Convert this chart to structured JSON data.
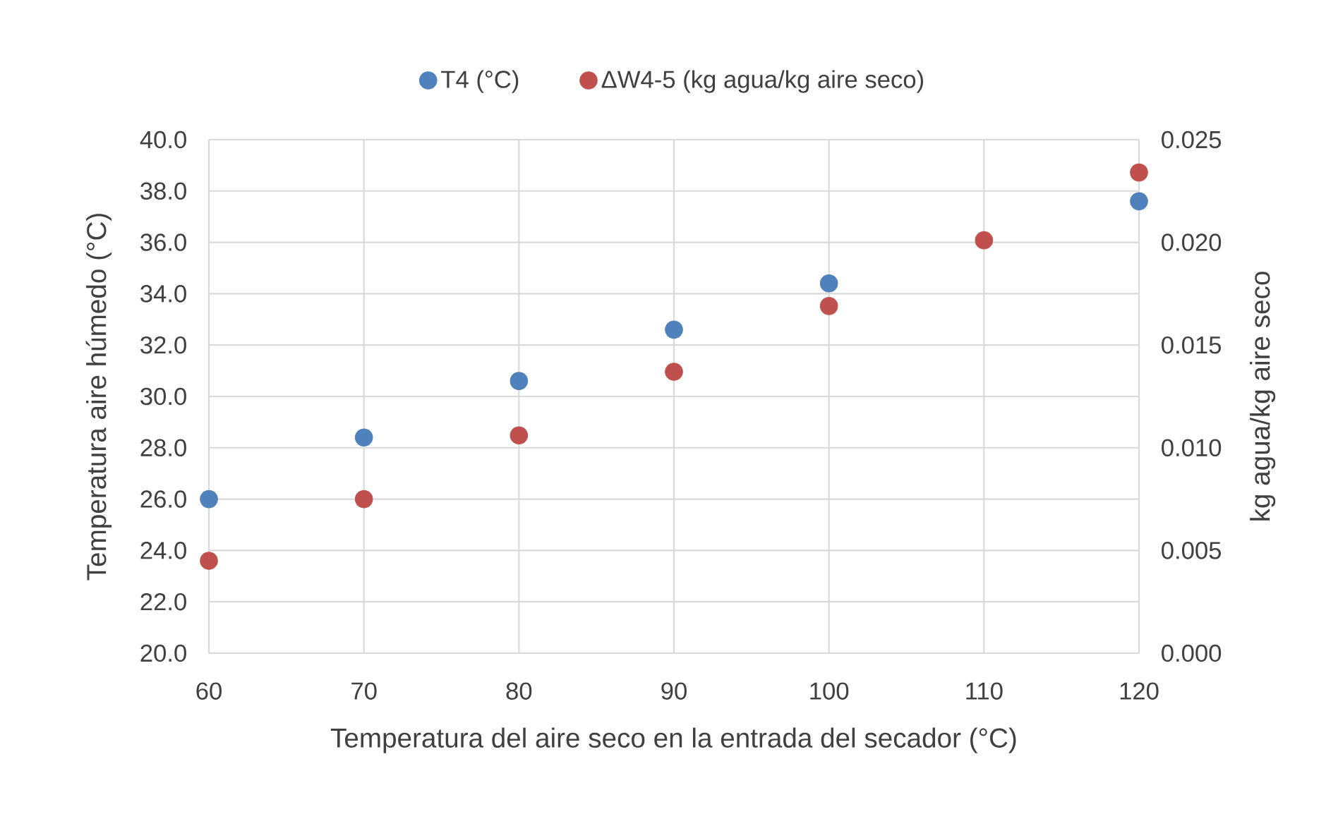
{
  "chart_data": {
    "type": "scatter",
    "xlabel": "Temperatura del aire seco en la entrada del secador (°C)",
    "ylabel": "Temperatura aire húmedo (°C)",
    "y2label": "kg agua/kg aire seco",
    "x": [
      60,
      70,
      80,
      90,
      100,
      110,
      120
    ],
    "series": [
      {
        "name": "T4 (°C)",
        "color": "#4f81bd",
        "values": [
          26.0,
          28.4,
          30.6,
          32.6,
          34.4,
          null,
          37.6
        ]
      },
      {
        "name": "ΔW4-5 (kg agua/kg aire seco)",
        "color": "#c0504d",
        "axis": "y2",
        "values": [
          0.0045,
          0.0075,
          0.0106,
          0.0137,
          0.0169,
          0.0201,
          0.0234
        ]
      }
    ],
    "xlim": [
      60,
      120
    ],
    "xticks": [
      60,
      70,
      80,
      90,
      100,
      110,
      120
    ],
    "ylim": [
      20,
      40
    ],
    "yticks": [
      {
        "value": 20,
        "label": "20.0"
      },
      {
        "value": 22,
        "label": "22.0"
      },
      {
        "value": 24,
        "label": "24.0"
      },
      {
        "value": 26,
        "label": "26.0"
      },
      {
        "value": 28,
        "label": "28.0"
      },
      {
        "value": 30,
        "label": "30.0"
      },
      {
        "value": 32,
        "label": "32.0"
      },
      {
        "value": 34,
        "label": "34.0"
      },
      {
        "value": 36,
        "label": "36.0"
      },
      {
        "value": 38,
        "label": "38.0"
      },
      {
        "value": 40,
        "label": "40.0"
      }
    ],
    "y2lim": [
      0,
      0.025
    ],
    "y2ticks": [
      {
        "value": 0,
        "label": "0.000"
      },
      {
        "value": 0.005,
        "label": "0.005"
      },
      {
        "value": 0.01,
        "label": "0.010"
      },
      {
        "value": 0.015,
        "label": "0.015"
      },
      {
        "value": 0.02,
        "label": "0.020"
      },
      0.025
    ],
    "grid": true,
    "legend": "top",
    "marker": "circle"
  }
}
